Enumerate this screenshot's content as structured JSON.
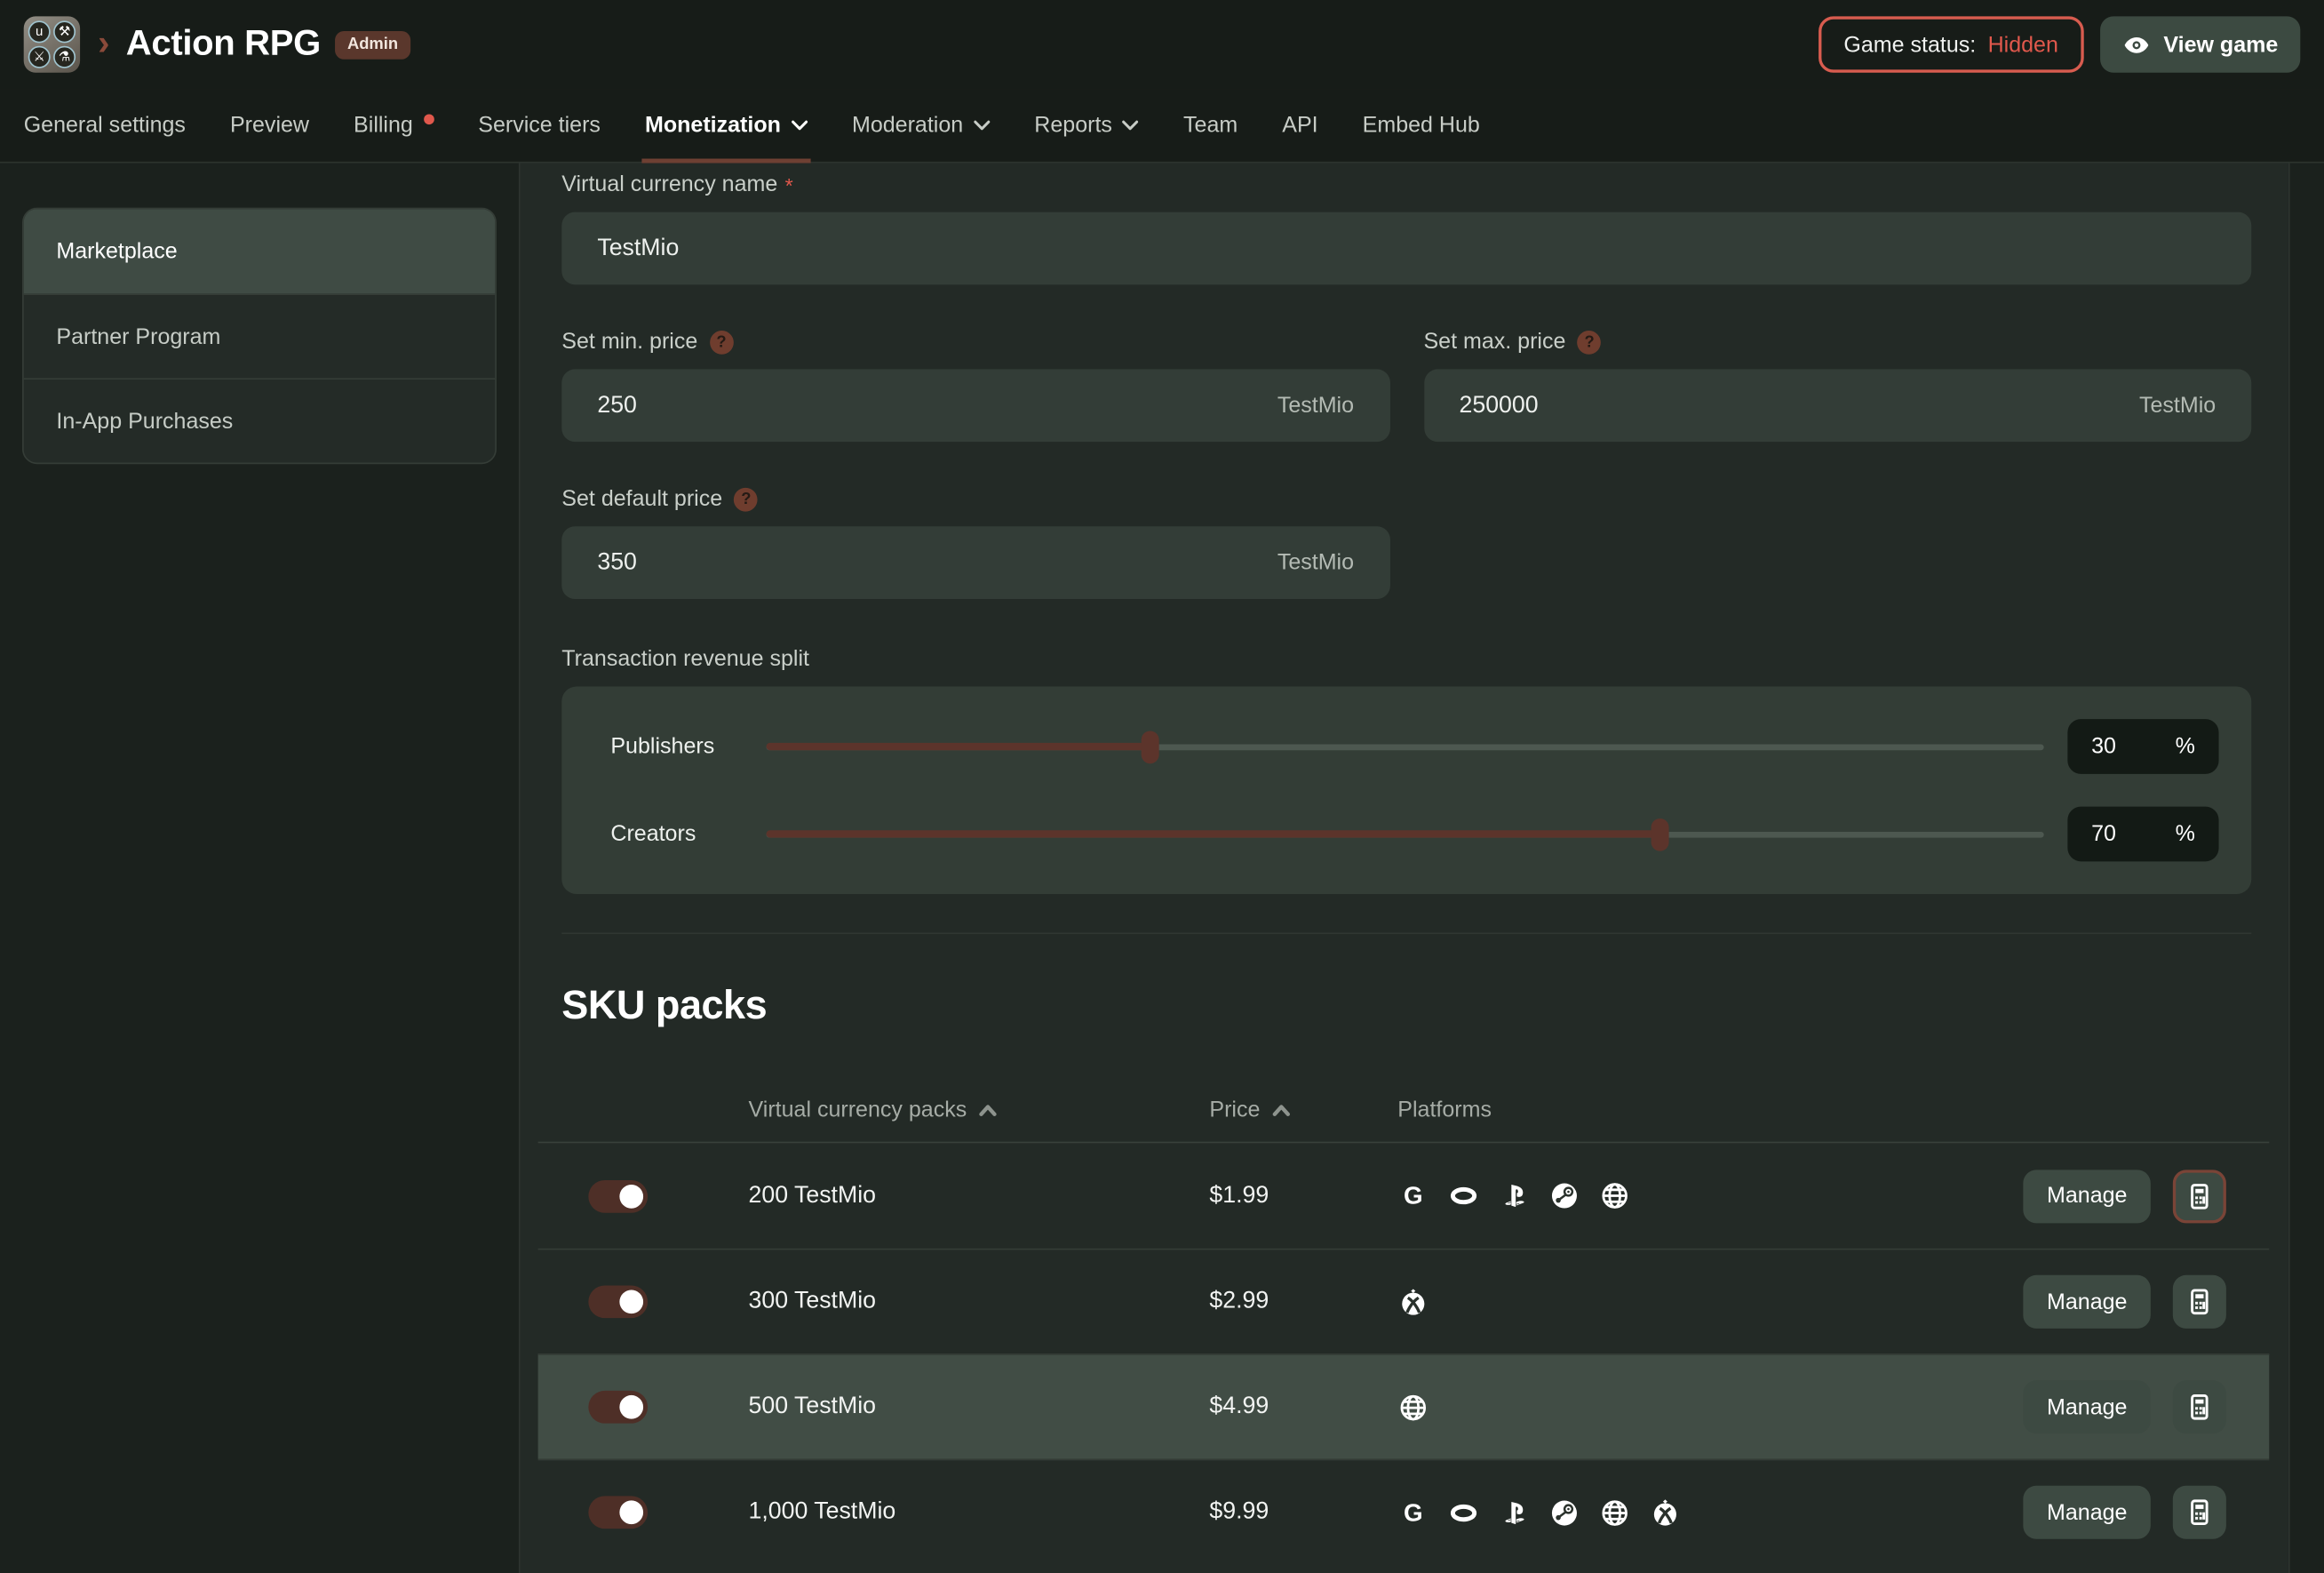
{
  "colors": {
    "accent_red": "#e0584c",
    "maroon": "#5c342b",
    "toggle_on": "#4e2f27",
    "row_highlight": "#414d45",
    "button_bg": "#3d4a42"
  },
  "header": {
    "title": "Action RPG",
    "badge": "Admin",
    "logo_glyphs": [
      "u",
      "⚒",
      "⚔",
      "⚗"
    ],
    "status_label": "Game status:",
    "status_value": "Hidden",
    "view_game_label": "View game"
  },
  "nav": {
    "items": [
      {
        "label": "General settings"
      },
      {
        "label": "Preview"
      },
      {
        "label": "Billing",
        "dot": true
      },
      {
        "label": "Service tiers"
      },
      {
        "label": "Monetization",
        "dropdown": true,
        "active": true
      },
      {
        "label": "Moderation",
        "dropdown": true
      },
      {
        "label": "Reports",
        "dropdown": true
      },
      {
        "label": "Team"
      },
      {
        "label": "API"
      },
      {
        "label": "Embed Hub"
      }
    ]
  },
  "sidebar": {
    "items": [
      {
        "label": "Marketplace",
        "selected": true
      },
      {
        "label": "Partner Program"
      },
      {
        "label": "In-App Purchases"
      }
    ]
  },
  "form": {
    "currency_name": {
      "label": "Virtual currency name",
      "required_marker": "*",
      "value": "TestMio"
    },
    "min_price": {
      "label": "Set min. price",
      "value": "250",
      "suffix": "TestMio"
    },
    "max_price": {
      "label": "Set max. price",
      "value": "250000",
      "suffix": "TestMio"
    },
    "default_price": {
      "label": "Set default price",
      "value": "350",
      "suffix": "TestMio"
    },
    "revenue_split": {
      "label": "Transaction revenue split",
      "unit": "%",
      "sliders": [
        {
          "label": "Publishers",
          "value": 30
        },
        {
          "label": "Creators",
          "value": 70
        }
      ]
    }
  },
  "sku": {
    "heading": "SKU packs",
    "columns": {
      "packs": "Virtual currency packs",
      "price": "Price",
      "platforms": "Platforms"
    },
    "manage_label": "Manage",
    "rows": [
      {
        "name": "200 TestMio",
        "price": "$1.99",
        "platforms": [
          "google",
          "oculus",
          "playstation",
          "steam",
          "web"
        ],
        "enabled": true,
        "calc_highlighted": true
      },
      {
        "name": "300 TestMio",
        "price": "$2.99",
        "platforms": [
          "xbox"
        ],
        "enabled": true
      },
      {
        "name": "500 TestMio",
        "price": "$4.99",
        "platforms": [
          "web"
        ],
        "enabled": true,
        "highlighted": true
      },
      {
        "name": "1,000 TestMio",
        "price": "$9.99",
        "platforms": [
          "google",
          "oculus",
          "playstation",
          "steam",
          "web",
          "xbox"
        ],
        "enabled": true
      }
    ]
  }
}
